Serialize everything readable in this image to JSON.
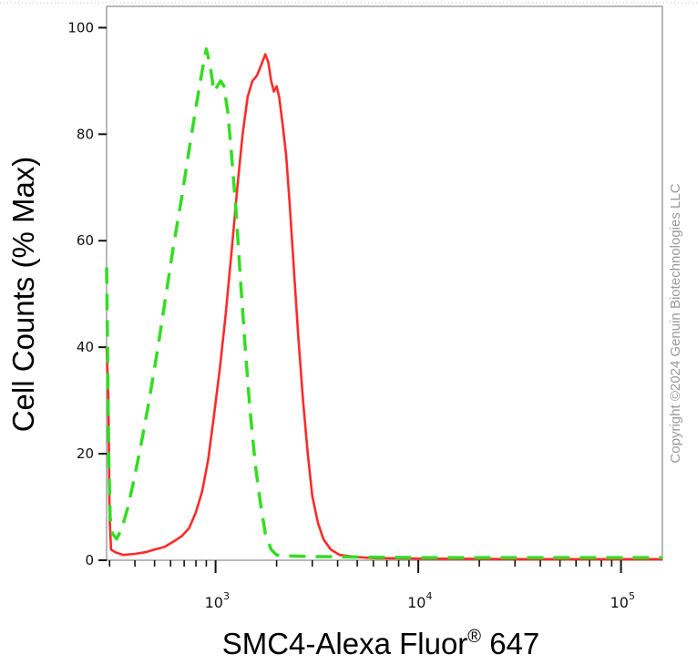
{
  "chart_data": {
    "type": "line",
    "xlabel_main": "SMC4-Alexa Fluor",
    "xlabel_sup": "®",
    "xlabel_tail": " 647",
    "ylabel": "Cell Counts (% Max)",
    "x_scale": "log",
    "xlim": [
      290,
      160000
    ],
    "ylim": [
      0,
      104
    ],
    "y_ticks": [
      0,
      20,
      40,
      60,
      80,
      100
    ],
    "y_tick_labels": [
      "0",
      "20",
      "40",
      "60",
      "80",
      "100"
    ],
    "x_major_ticks": [
      {
        "value": 1000,
        "base": "10",
        "exp": "3"
      },
      {
        "value": 10000,
        "base": "10",
        "exp": "4"
      },
      {
        "value": 100000,
        "base": "10",
        "exp": "5"
      }
    ],
    "series": [
      {
        "color": "#ff2a2a",
        "style": "solid",
        "points": [
          [
            290,
            40
          ],
          [
            296,
            30
          ],
          [
            300,
            8
          ],
          [
            305,
            2
          ],
          [
            320,
            1.5
          ],
          [
            350,
            1
          ],
          [
            400,
            1.2
          ],
          [
            450,
            1.5
          ],
          [
            500,
            2
          ],
          [
            560,
            2.5
          ],
          [
            620,
            3.5
          ],
          [
            680,
            4.5
          ],
          [
            740,
            6
          ],
          [
            800,
            9
          ],
          [
            860,
            13
          ],
          [
            920,
            19
          ],
          [
            980,
            27
          ],
          [
            1050,
            36
          ],
          [
            1120,
            46
          ],
          [
            1200,
            58
          ],
          [
            1280,
            70
          ],
          [
            1360,
            80
          ],
          [
            1440,
            87
          ],
          [
            1520,
            90
          ],
          [
            1600,
            91
          ],
          [
            1680,
            93
          ],
          [
            1760,
            95
          ],
          [
            1820,
            93.5
          ],
          [
            1880,
            90
          ],
          [
            1940,
            88
          ],
          [
            2000,
            89
          ],
          [
            2060,
            87
          ],
          [
            2140,
            82
          ],
          [
            2230,
            76
          ],
          [
            2330,
            66
          ],
          [
            2440,
            54
          ],
          [
            2560,
            42
          ],
          [
            2700,
            30
          ],
          [
            2850,
            20
          ],
          [
            3000,
            12
          ],
          [
            3200,
            7
          ],
          [
            3400,
            4
          ],
          [
            3700,
            2
          ],
          [
            4100,
            1
          ],
          [
            5000,
            0.6
          ],
          [
            6000,
            0.4
          ],
          [
            10000,
            0.3
          ],
          [
            30000,
            0.2
          ],
          [
            100000,
            0.2
          ],
          [
            160000,
            0.2
          ]
        ]
      },
      {
        "color": "#33dd22",
        "style": "dashed",
        "points": [
          [
            290,
            55
          ],
          [
            293,
            40
          ],
          [
            297,
            20
          ],
          [
            302,
            8
          ],
          [
            310,
            5
          ],
          [
            325,
            4
          ],
          [
            345,
            6
          ],
          [
            370,
            10
          ],
          [
            400,
            16
          ],
          [
            430,
            22
          ],
          [
            470,
            30
          ],
          [
            520,
            40
          ],
          [
            570,
            50
          ],
          [
            620,
            59
          ],
          [
            680,
            68
          ],
          [
            740,
            77
          ],
          [
            800,
            85
          ],
          [
            860,
            92
          ],
          [
            900,
            96
          ],
          [
            940,
            93
          ],
          [
            980,
            88
          ],
          [
            1020,
            89
          ],
          [
            1060,
            90
          ],
          [
            1100,
            89
          ],
          [
            1150,
            84
          ],
          [
            1200,
            76
          ],
          [
            1260,
            66
          ],
          [
            1330,
            52
          ],
          [
            1400,
            40
          ],
          [
            1480,
            28
          ],
          [
            1570,
            18
          ],
          [
            1660,
            11
          ],
          [
            1760,
            5
          ],
          [
            1880,
            2
          ],
          [
            2000,
            1
          ],
          [
            2300,
            0.8
          ],
          [
            3000,
            0.7
          ],
          [
            5000,
            0.6
          ],
          [
            10000,
            0.5
          ],
          [
            30000,
            0.5
          ],
          [
            100000,
            0.5
          ],
          [
            160000,
            0.5
          ]
        ]
      }
    ]
  },
  "copyright": "Copyright ©2024 Genuin Biotechnologies LLC"
}
